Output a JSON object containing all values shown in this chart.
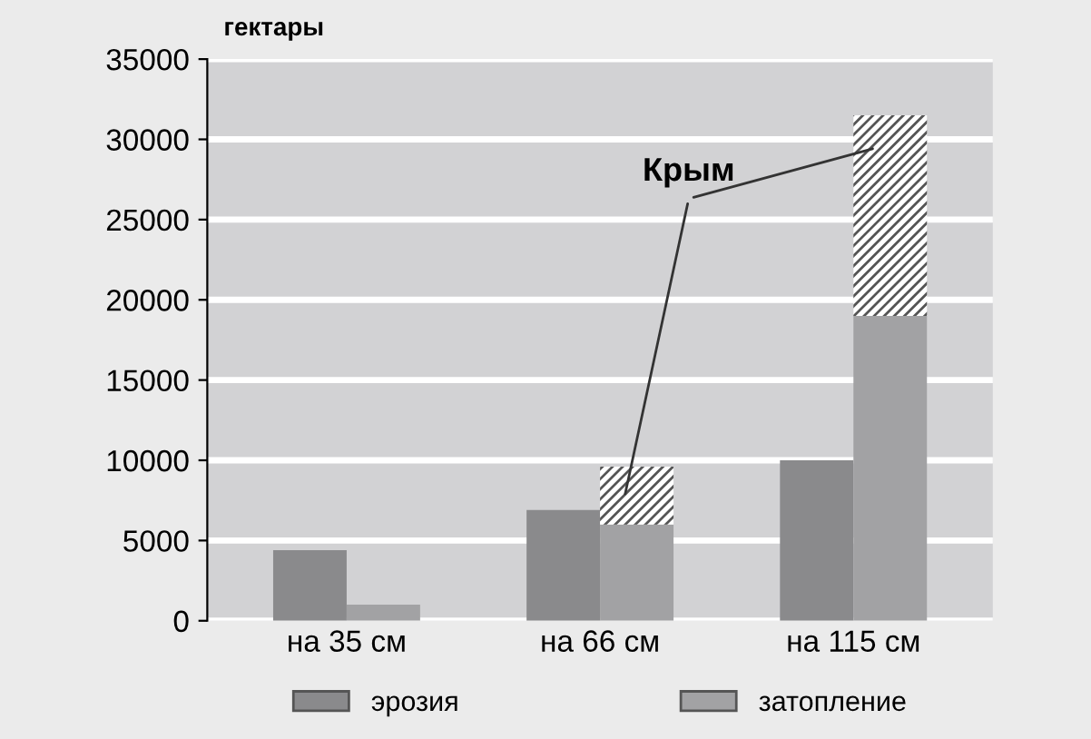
{
  "chart_data": {
    "type": "bar",
    "ylabel": "гектары",
    "categories": [
      "на 35 см",
      "на 66 см",
      "на 115 см"
    ],
    "series": [
      {
        "name": "эрозия",
        "color": "#8a8a8c",
        "values": [
          4400,
          6900,
          10000
        ],
        "base": [
          0,
          0,
          0
        ]
      },
      {
        "name": "затопление",
        "color": "#a2a2a4",
        "values": [
          1000,
          6000,
          19000
        ],
        "base": [
          0,
          0,
          0
        ]
      },
      {
        "color": "#ffffff",
        "values": [
          null,
          3600,
          12500
        ],
        "base": [
          null,
          6000,
          19000
        ]
      }
    ],
    "annotations": [
      "Крым"
    ],
    "ylim": [
      0,
      35000
    ],
    "yticks": [
      0,
      5000,
      10000,
      15000,
      20000,
      25000,
      30000,
      35000
    ],
    "grid": "y",
    "legend": "bottom"
  }
}
